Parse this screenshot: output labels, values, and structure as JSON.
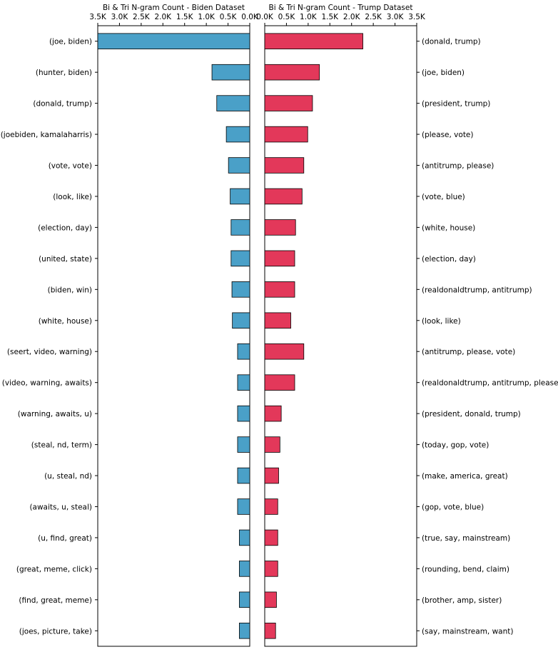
{
  "chart_data": [
    {
      "type": "bar",
      "orientation": "horizontal",
      "direction": "reversed",
      "title": "Bi & Tri N-gram Count - Biden Dataset",
      "xlim": [
        3500,
        0
      ],
      "x_ticks": [
        3500,
        3000,
        2500,
        2000,
        1500,
        1000,
        500,
        0
      ],
      "x_tick_labels": [
        "3.5K",
        "3.0K",
        "2.5K",
        "2.0K",
        "1.5K",
        "1.0K",
        "0.5K",
        "0.0K"
      ],
      "tick_position": "top",
      "category_labels_position": "left",
      "color": "#4aa0c8",
      "categories": [
        "(joe, biden)",
        "(hunter, biden)",
        "(donald, trump)",
        "(joebiden, kamalaharris)",
        "(vote, vote)",
        "(look, like)",
        "(election, day)",
        "(united, state)",
        "(biden, win)",
        "(white, house)",
        "(seert, video, warning)",
        "(video, warning, awaits)",
        "(warning, awaits, u)",
        "(steal, nd, term)",
        "(u, steal, nd)",
        "(awaits, u, steal)",
        "(u, find, great)",
        "(great, meme, click)",
        "(find, great, meme)",
        "(joes, picture, take)"
      ],
      "values": [
        3500,
        870,
        760,
        540,
        490,
        450,
        430,
        430,
        410,
        400,
        280,
        280,
        280,
        280,
        280,
        280,
        240,
        240,
        240,
        240
      ]
    },
    {
      "type": "bar",
      "orientation": "horizontal",
      "title": "Bi & Tri N-gram Count - Trump Dataset",
      "xlim": [
        0,
        3500
      ],
      "x_ticks": [
        0,
        500,
        1000,
        1500,
        2000,
        2500,
        3000,
        3500
      ],
      "x_tick_labels": [
        "0.0K",
        "0.5K",
        "1.0K",
        "1.5K",
        "2.0K",
        "2.5K",
        "3.0K",
        "3.5K"
      ],
      "tick_position": "top",
      "category_labels_position": "right",
      "color": "#e3385a",
      "categories": [
        "(donald, trump)",
        "(joe, biden)",
        "(president, trump)",
        "(please, vote)",
        "(antitrump, please)",
        "(vote, blue)",
        "(white, house)",
        "(election, day)",
        "(realdonaldtrump, antitrump)",
        "(look, like)",
        "(antitrump, please, vote)",
        "(realdonaldtrump, antitrump, please)",
        "(president, donald, trump)",
        "(today, gop, vote)",
        "(make, america, great)",
        "(gop, vote, blue)",
        "(true, say, mainstream)",
        "(rounding, bend, claim)",
        "(brother, amp, sister)",
        "(say, mainstream, want)"
      ],
      "values": [
        2260,
        1260,
        1100,
        990,
        900,
        860,
        710,
        690,
        690,
        600,
        900,
        690,
        380,
        350,
        320,
        300,
        300,
        300,
        270,
        250
      ]
    }
  ]
}
